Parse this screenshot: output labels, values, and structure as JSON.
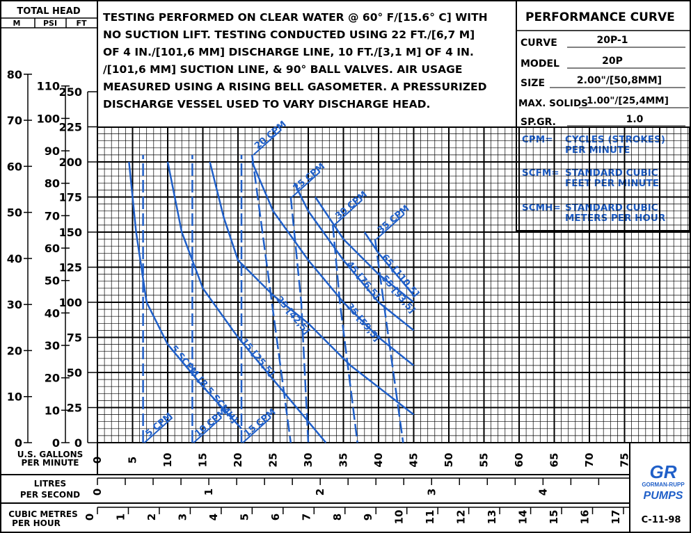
{
  "header": {
    "total_head_label": "TOTAL HEAD",
    "col_m": "M",
    "col_psi": "PSI",
    "col_ft": "FT",
    "notes": [
      "TESTING PERFORMED ON CLEAR WATER @ 60° F/[15.6° C] WITH",
      "NO SUCTION LIFT. TESTING CONDUCTED USING 22 FT./[6,7 M]",
      "OF 4 IN./[101,6 MM] DISCHARGE LINE, 10 FT./[3,1 M]  OF 4 IN.",
      "/[101,6 MM] SUCTION LINE, & 90° BALL VALVES. AIR USAGE",
      "MEASURED USING A RISING BELL GASOMETER. A PRESSURIZED",
      "DISCHARGE VESSEL USED TO VARY DISCHARGE HEAD."
    ]
  },
  "info": {
    "title": "PERFORMANCE CURVE",
    "curve_label": "CURVE",
    "curve_value": "20P-1",
    "model_label": "MODEL",
    "model_value": "20P",
    "size_label": "SIZE",
    "size_value": "2.00\"/[50,8MM]",
    "max_solids_label": "MAX. SOLIDS",
    "max_solids_value": "1.00\"/[25,4MM]",
    "spgr_label": "SP.GR.",
    "spgr_value": "1.0"
  },
  "legend": {
    "cpm_key": "CPM=",
    "cpm_1": "CYCLES (STROKES)",
    "cpm_2": "PER MINUTE",
    "scfm_key": "SCFM=",
    "scfm_1": "STANDARD CUBIC",
    "scfm_2": "FEET PER MINUTE",
    "scmh_key": "SCMH=",
    "scmh_1": "STANDARD CUBIC",
    "scmh_2": "METERS PER HOUR"
  },
  "footer": {
    "gpm_label_1": "U.S. GALLONS",
    "gpm_label_2": "PER MINUTE",
    "lps_label_1": "LITRES",
    "lps_label_2": "PER SECOND",
    "cmh_label_1": "CUBIC METRES",
    "cmh_label_2": "PER HOUR",
    "logo_top": "GR",
    "logo_mid": "GORMAN-RUPP",
    "logo_bottom": "PUMPS",
    "date_code": "C-11-98"
  },
  "colors": {
    "curve": "#1f5fc8",
    "grid": "#000000",
    "logo": "#1f5fc8"
  },
  "chart_data": {
    "type": "line",
    "xlabel": "U.S. GALLONS PER MINUTE",
    "ylabel": "TOTAL HEAD",
    "xlim": [
      0,
      80
    ],
    "ylim": [
      0,
      250
    ],
    "x_ticks": [
      "0",
      "5",
      "10",
      "15",
      "20",
      "25",
      "30",
      "35",
      "40",
      "45",
      "50",
      "55",
      "60",
      "65",
      "70",
      "75"
    ],
    "ft_ticks": [
      "0",
      "25",
      "50",
      "75",
      "100",
      "125",
      "150",
      "175",
      "200",
      "225",
      "250"
    ],
    "m_ticks": [
      "0",
      "10",
      "20",
      "30",
      "40",
      "50",
      "60",
      "70",
      "80"
    ],
    "psi_ticks": [
      "0",
      "10",
      "20",
      "30",
      "40",
      "50",
      "60",
      "70",
      "80",
      "90",
      "100",
      "110"
    ],
    "lps_ticks": [
      "0",
      "1",
      "2",
      "3",
      "4"
    ],
    "cmh_ticks": [
      "0",
      "1",
      "2",
      "3",
      "4",
      "5",
      "6",
      "7",
      "8",
      "9",
      "10",
      "11",
      "12",
      "13",
      "14",
      "15",
      "16",
      "17"
    ],
    "cpm_series": [
      {
        "name": "5 CPM",
        "x": [
          6.5,
          6.5
        ],
        "y": [
          0,
          205
        ]
      },
      {
        "name": "10 CPM",
        "x": [
          13.5,
          13.5
        ],
        "y": [
          0,
          205
        ]
      },
      {
        "name": "15 CPM",
        "x": [
          20.5,
          20.5
        ],
        "y": [
          0,
          205
        ]
      },
      {
        "name": "20 CPM",
        "x": [
          22,
          27.5
        ],
        "y": [
          205,
          0
        ]
      },
      {
        "name": "25 CPM",
        "x": [
          27.5,
          29,
          30
        ],
        "y": [
          175,
          100,
          0
        ]
      },
      {
        "name": "30 CPM",
        "x": [
          33.5,
          34.5,
          37
        ],
        "y": [
          155,
          100,
          0
        ]
      },
      {
        "name": "35 CPM",
        "x": [
          39.5,
          41,
          43.5
        ],
        "y": [
          145,
          90,
          0
        ]
      }
    ],
    "scfm_series": [
      {
        "name": "5 SCFM [8,5 SCMH]",
        "x": [
          4.5,
          5.5,
          7,
          10,
          15,
          20.5
        ],
        "y": [
          200,
          150,
          100,
          70,
          40,
          10
        ]
      },
      {
        "name": "15 [25,5]",
        "x": [
          10,
          12,
          15,
          20,
          25,
          32.5
        ],
        "y": [
          200,
          150,
          110,
          75,
          45,
          0
        ]
      },
      {
        "name": "25 [42,5]",
        "x": [
          16,
          18,
          20,
          25,
          30,
          36,
          45
        ],
        "y": [
          200,
          160,
          130,
          105,
          85,
          55,
          20
        ]
      },
      {
        "name": "35 [59,5]",
        "x": [
          22,
          25,
          30,
          35,
          40,
          45
        ],
        "y": [
          200,
          165,
          130,
          100,
          75,
          55
        ]
      },
      {
        "name": "45 [76,5]",
        "x": [
          28,
          30,
          35,
          40,
          45
        ],
        "y": [
          185,
          165,
          130,
          100,
          80
        ]
      },
      {
        "name": "55 [93,5]",
        "x": [
          31,
          35,
          40,
          45
        ],
        "y": [
          175,
          145,
          120,
          100
        ]
      },
      {
        "name": "65 [110,5]",
        "x": [
          38,
          40,
          45
        ],
        "y": [
          150,
          135,
          105
        ]
      }
    ]
  }
}
